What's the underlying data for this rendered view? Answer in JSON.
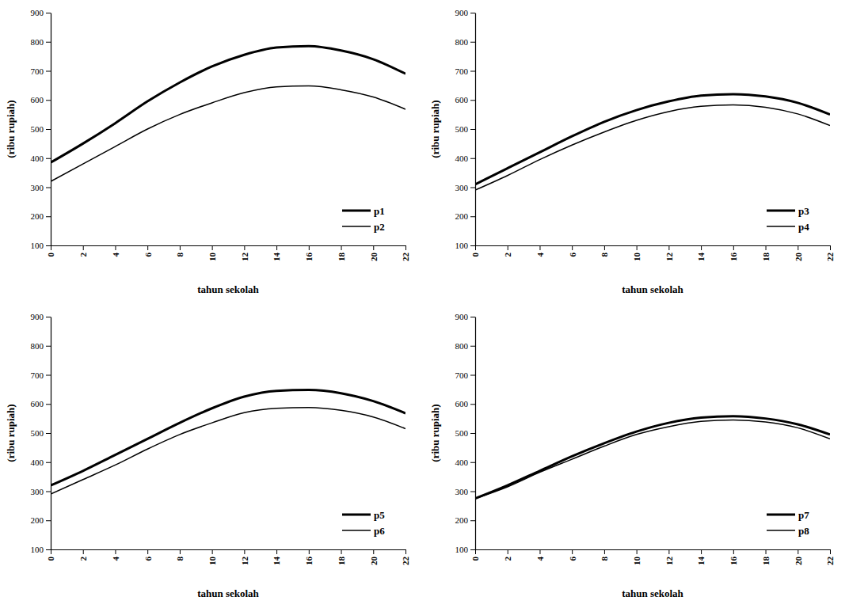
{
  "chart_data": [
    {
      "type": "line",
      "xlabel": "tahun sekolah",
      "ylabel": "(ribu rupiah)",
      "x": [
        0,
        2,
        4,
        6,
        8,
        10,
        12,
        14,
        16,
        18,
        20,
        22
      ],
      "series": [
        {
          "name": "p1",
          "color": "#000000",
          "line_style": "solid",
          "values": [
            385,
            450,
            520,
            595,
            660,
            715,
            755,
            780,
            785,
            770,
            740,
            690
          ]
        },
        {
          "name": "p2",
          "color": "#000000",
          "line_style": "solid",
          "values": [
            320,
            380,
            440,
            500,
            550,
            590,
            625,
            645,
            648,
            635,
            610,
            568
          ]
        }
      ],
      "xlim": [
        0,
        22
      ],
      "xticks": [
        0,
        2,
        4,
        6,
        8,
        10,
        12,
        14,
        16,
        18,
        20,
        22
      ],
      "ylim": [
        100,
        900
      ],
      "yticks": [
        100,
        200,
        300,
        400,
        500,
        600,
        700,
        800,
        900
      ],
      "legend": "lower right"
    },
    {
      "type": "line",
      "xlabel": "tahun sekolah",
      "ylabel": "(ribu rupiah)",
      "x": [
        0,
        2,
        4,
        6,
        8,
        10,
        12,
        14,
        16,
        18,
        20,
        22
      ],
      "series": [
        {
          "name": "p3",
          "color": "#000000",
          "line_style": "solid",
          "values": [
            310,
            365,
            420,
            475,
            525,
            565,
            595,
            615,
            620,
            612,
            590,
            550
          ]
        },
        {
          "name": "p4",
          "color": "#000000",
          "line_style": "solid",
          "values": [
            290,
            340,
            395,
            445,
            490,
            530,
            560,
            578,
            583,
            575,
            552,
            512
          ]
        }
      ],
      "xlim": [
        0,
        22
      ],
      "xticks": [
        0,
        2,
        4,
        6,
        8,
        10,
        12,
        14,
        16,
        18,
        20,
        22
      ],
      "ylim": [
        100,
        900
      ],
      "yticks": [
        100,
        200,
        300,
        400,
        500,
        600,
        700,
        800,
        900
      ],
      "legend": "lower right"
    },
    {
      "type": "line",
      "xlabel": "tahun sekolah",
      "ylabel": "(ribu rupiah)",
      "x": [
        0,
        2,
        4,
        6,
        8,
        10,
        12,
        14,
        16,
        18,
        20,
        22
      ],
      "series": [
        {
          "name": "p5",
          "color": "#000000",
          "line_style": "solid",
          "values": [
            320,
            370,
            425,
            480,
            535,
            585,
            625,
            645,
            648,
            637,
            610,
            568
          ]
        },
        {
          "name": "p6",
          "color": "#000000",
          "line_style": "solid",
          "values": [
            290,
            340,
            390,
            445,
            495,
            535,
            570,
            585,
            588,
            578,
            555,
            515
          ]
        }
      ],
      "xlim": [
        0,
        22
      ],
      "xticks": [
        0,
        2,
        4,
        6,
        8,
        10,
        12,
        14,
        16,
        18,
        20,
        22
      ],
      "ylim": [
        100,
        900
      ],
      "yticks": [
        100,
        200,
        300,
        400,
        500,
        600,
        700,
        800,
        900
      ],
      "legend": "lower right"
    },
    {
      "type": "line",
      "xlabel": "tahun sekolah",
      "ylabel": "(ribu rupiah)",
      "x": [
        0,
        2,
        4,
        6,
        8,
        10,
        12,
        14,
        16,
        18,
        20,
        22
      ],
      "series": [
        {
          "name": "p7",
          "color": "#000000",
          "line_style": "solid",
          "values": [
            275,
            320,
            370,
            420,
            465,
            505,
            535,
            553,
            558,
            550,
            530,
            495
          ]
        },
        {
          "name": "p8",
          "color": "#000000",
          "line_style": "solid",
          "values": [
            275,
            315,
            365,
            410,
            455,
            495,
            522,
            540,
            545,
            538,
            518,
            480
          ]
        }
      ],
      "xlim": [
        0,
        22
      ],
      "xticks": [
        0,
        2,
        4,
        6,
        8,
        10,
        12,
        14,
        16,
        18,
        20,
        22
      ],
      "ylim": [
        100,
        900
      ],
      "yticks": [
        100,
        200,
        300,
        400,
        500,
        600,
        700,
        800,
        900
      ],
      "legend": "lower right"
    }
  ]
}
